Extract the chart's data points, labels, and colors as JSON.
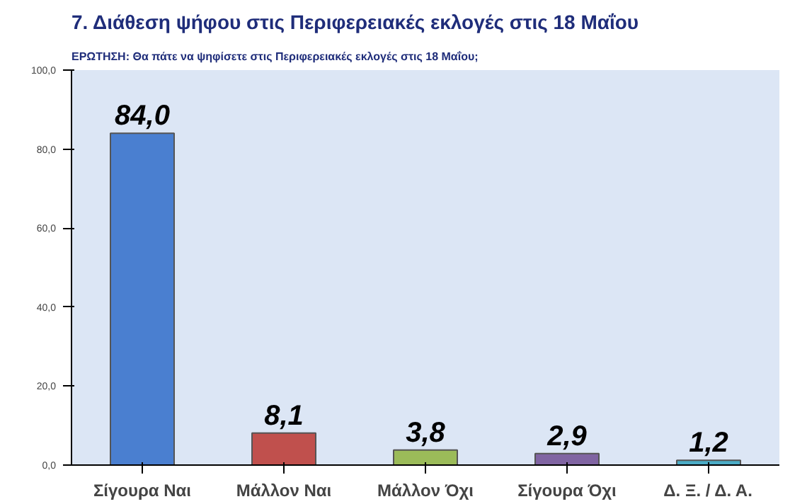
{
  "chart_data": {
    "type": "bar",
    "title": "7. Διάθεση ψήφου στις Περιφερειακές εκλογές στις 18 Μαΐου",
    "subtitle": "ΕΡΩΤΗΣΗ: Θα πάτε να ψηφίσετε στις Περιφερειακές εκλογές στις 18 Μαΐου;",
    "categories": [
      "Σίγουρα Ναι",
      "Μάλλον Ναι",
      "Μάλλον Όχι",
      "Σίγουρα Όχι",
      "Δ. Ξ. / Δ. Α."
    ],
    "values": [
      84.0,
      8.1,
      3.8,
      2.9,
      1.2
    ],
    "colors": [
      "#4a7fd0",
      "#c0504d",
      "#9bbb59",
      "#8064a2",
      "#4bacc6"
    ],
    "value_labels": [
      "84,0",
      "8,1",
      "3,8",
      "2,9",
      "1,2"
    ],
    "ylim": [
      0,
      100
    ],
    "yticks": [
      {
        "value": 0,
        "label": "0,0"
      },
      {
        "value": 20,
        "label": "20,0"
      },
      {
        "value": 40,
        "label": "40,0"
      },
      {
        "value": 60,
        "label": "60,0"
      },
      {
        "value": 80,
        "label": "80,0"
      },
      {
        "value": 100,
        "label": "100,0"
      }
    ],
    "grid": false
  }
}
